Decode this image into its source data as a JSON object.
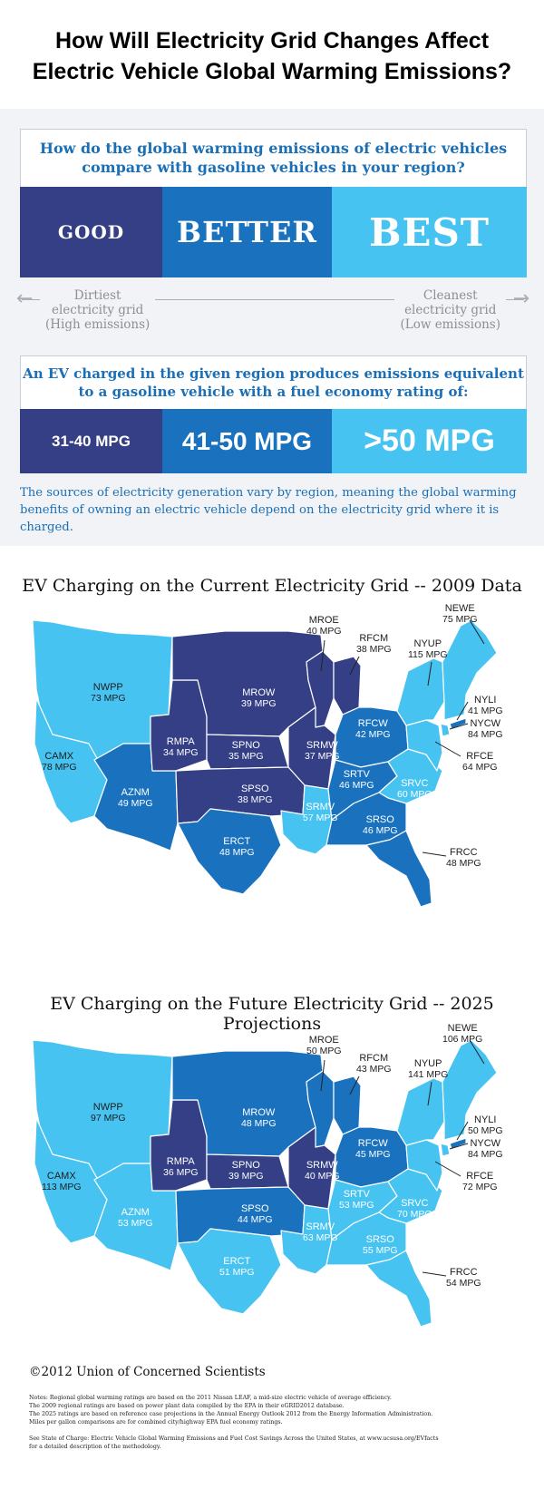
{
  "title": {
    "line1": "How Will Electricity Grid Changes Affect",
    "line2": "Electric Vehicle Global Warming Emissions?"
  },
  "legend": {
    "question_line1": "How do the global warming emissions of electric vehicles",
    "question_line2": "compare with gasoline vehicles in your region?",
    "ratings": [
      "GOOD",
      "BETTER",
      "BEST"
    ],
    "dirtiest": [
      "Dirtiest",
      "electricity grid",
      "(High emissions)"
    ],
    "cleanest": [
      "Cleanest",
      "electricity grid",
      "(Low emissions)"
    ],
    "equiv_line1": "An EV charged in the given region produces emissions equivalent",
    "equiv_line2": "to a gasoline vehicle with a fuel economy rating of:",
    "mpg_ranges": [
      "31-40 MPG",
      "41-50 MPG",
      ">50 MPG"
    ],
    "note_line1": "The sources of electricity generation vary by region, meaning the global warming",
    "note_line2": "benefits of owning an electric vehicle depend on the electricity grid where it is charged.",
    "colors": {
      "good": "#343f85",
      "better": "#1a72bf",
      "best": "#46c3f1"
    }
  },
  "maps": [
    {
      "title": "EV Charging on the Current Electricity Grid -- 2009 Data",
      "regions": [
        {
          "code": "NEWE",
          "mpg": "75 MPG",
          "rating": "best"
        },
        {
          "code": "MROE",
          "mpg": "40 MPG",
          "rating": "good"
        },
        {
          "code": "RFCM",
          "mpg": "38 MPG",
          "rating": "good"
        },
        {
          "code": "NYUP",
          "mpg": "115 MPG",
          "rating": "best"
        },
        {
          "code": "NWPP",
          "mpg": "73 MPG",
          "rating": "best"
        },
        {
          "code": "MROW",
          "mpg": "39 MPG",
          "rating": "good"
        },
        {
          "code": "NYLI",
          "mpg": "41 MPG",
          "rating": "better"
        },
        {
          "code": "NYCW",
          "mpg": "84 MPG",
          "rating": "best"
        },
        {
          "code": "RFCW",
          "mpg": "42 MPG",
          "rating": "better"
        },
        {
          "code": "RMPA",
          "mpg": "34 MPG",
          "rating": "good"
        },
        {
          "code": "SPNO",
          "mpg": "35 MPG",
          "rating": "good"
        },
        {
          "code": "SRMW",
          "mpg": "37 MPG",
          "rating": "good"
        },
        {
          "code": "RFCE",
          "mpg": "64 MPG",
          "rating": "best"
        },
        {
          "code": "CAMX",
          "mpg": "78 MPG",
          "rating": "best"
        },
        {
          "code": "SRTV",
          "mpg": "46 MPG",
          "rating": "better"
        },
        {
          "code": "AZNM",
          "mpg": "49 MPG",
          "rating": "better"
        },
        {
          "code": "SPSO",
          "mpg": "38 MPG",
          "rating": "good"
        },
        {
          "code": "SRVC",
          "mpg": "60 MPG",
          "rating": "best"
        },
        {
          "code": "SRMV",
          "mpg": "57 MPG",
          "rating": "best"
        },
        {
          "code": "SRSO",
          "mpg": "46 MPG",
          "rating": "better"
        },
        {
          "code": "ERCT",
          "mpg": "48 MPG",
          "rating": "better"
        },
        {
          "code": "FRCC",
          "mpg": "48 MPG",
          "rating": "better"
        }
      ]
    },
    {
      "title": "EV Charging on the Future Electricity Grid -- 2025 Projections",
      "regions": [
        {
          "code": "NEWE",
          "mpg": "106 MPG",
          "rating": "best"
        },
        {
          "code": "MROE",
          "mpg": "50 MPG",
          "rating": "better"
        },
        {
          "code": "RFCM",
          "mpg": "43 MPG",
          "rating": "better"
        },
        {
          "code": "NYUP",
          "mpg": "141 MPG",
          "rating": "best"
        },
        {
          "code": "NWPP",
          "mpg": "97 MPG",
          "rating": "best"
        },
        {
          "code": "MROW",
          "mpg": "48 MPG",
          "rating": "better"
        },
        {
          "code": "NYLI",
          "mpg": "50 MPG",
          "rating": "better"
        },
        {
          "code": "NYCW",
          "mpg": "84 MPG",
          "rating": "best"
        },
        {
          "code": "RFCW",
          "mpg": "45 MPG",
          "rating": "better"
        },
        {
          "code": "RMPA",
          "mpg": "36 MPG",
          "rating": "good"
        },
        {
          "code": "SPNO",
          "mpg": "39 MPG",
          "rating": "good"
        },
        {
          "code": "SRMW",
          "mpg": "40 MPG",
          "rating": "good"
        },
        {
          "code": "RFCE",
          "mpg": "72 MPG",
          "rating": "best"
        },
        {
          "code": "CAMX",
          "mpg": "113 MPG",
          "rating": "best"
        },
        {
          "code": "SRTV",
          "mpg": "53 MPG",
          "rating": "best"
        },
        {
          "code": "AZNM",
          "mpg": "53 MPG",
          "rating": "best"
        },
        {
          "code": "SPSO",
          "mpg": "44 MPG",
          "rating": "better"
        },
        {
          "code": "SRVC",
          "mpg": "70 MPG",
          "rating": "best"
        },
        {
          "code": "SRMV",
          "mpg": "63 MPG",
          "rating": "best"
        },
        {
          "code": "SRSO",
          "mpg": "55 MPG",
          "rating": "best"
        },
        {
          "code": "ERCT",
          "mpg": "51 MPG",
          "rating": "best"
        },
        {
          "code": "FRCC",
          "mpg": "54 MPG",
          "rating": "best"
        }
      ]
    }
  ],
  "footer": {
    "copyright": "©2012 Union of Concerned Scientists",
    "notes": [
      "Notes: Regional global warming ratings are based on the 2011 Nissan LEAF, a mid-size electric vehicle of average efficiency.",
      "The 2009 regional ratings are based on power plant data compiled by the EPA in their eGRID2012 database.",
      "The 2025 ratings are based on reference case projections in the Annual Energy Outlook 2012 from the Energy Information Administration.",
      "Miles per gallon comparisons are for combined city/highway EPA fuel economy ratings."
    ],
    "see_line1": "See State of Charge: Electric Vehicle Global Warming Emissions and Fuel Cost Savings Across the United States, at www.ucsusa.org/EVfacts",
    "see_line2": "for a detailed description of the methodology."
  }
}
